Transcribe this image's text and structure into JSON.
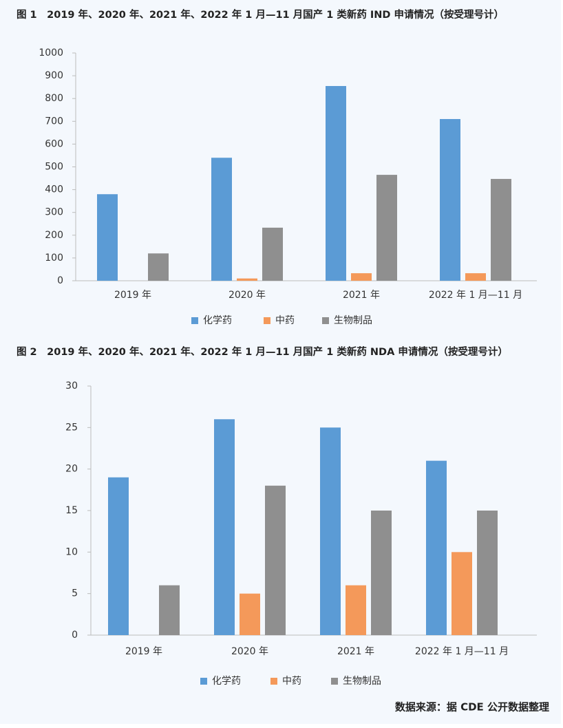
{
  "chart_data": [
    {
      "type": "bar",
      "title": "图 1　2019 年、2020 年、2021 年、2022 年 1 月—11 月国产 1 类新药 IND 申请情况（按受理号计）",
      "categories": [
        "2019 年",
        "2020 年",
        "2021 年",
        "2022 年 1 月—11 月"
      ],
      "series": [
        {
          "name": "化学药",
          "color": "#5b9bd5",
          "values": [
            380,
            540,
            855,
            710
          ]
        },
        {
          "name": "中药",
          "color": "#f4995a",
          "values": [
            0,
            10,
            33,
            33
          ]
        },
        {
          "name": "生物制品",
          "color": "#8f8f8f",
          "values": [
            120,
            233,
            465,
            447
          ]
        }
      ],
      "ylim": [
        0,
        1000
      ],
      "yticks": [
        0,
        100,
        200,
        300,
        400,
        500,
        600,
        700,
        800,
        900,
        1000
      ],
      "legend": "bottom"
    },
    {
      "type": "bar",
      "title": "图 2　2019 年、2020 年、2021 年、2022 年 1 月—11 月国产 1 类新药 NDA 申请情况（按受理号计）",
      "categories": [
        "2019 年",
        "2020 年",
        "2021 年",
        "2022 年 1 月—11 月"
      ],
      "series": [
        {
          "name": "化学药",
          "color": "#5b9bd5",
          "values": [
            19,
            26,
            25,
            21
          ]
        },
        {
          "name": "中药",
          "color": "#f4995a",
          "values": [
            0,
            5,
            6,
            10
          ]
        },
        {
          "name": "生物制品",
          "color": "#8f8f8f",
          "values": [
            6,
            18,
            15,
            15
          ]
        }
      ],
      "ylim": [
        0,
        30
      ],
      "yticks": [
        0,
        5,
        10,
        15,
        20,
        25,
        30
      ],
      "legend": "bottom"
    }
  ],
  "source": "数据来源：据 CDE 公开数据整理"
}
